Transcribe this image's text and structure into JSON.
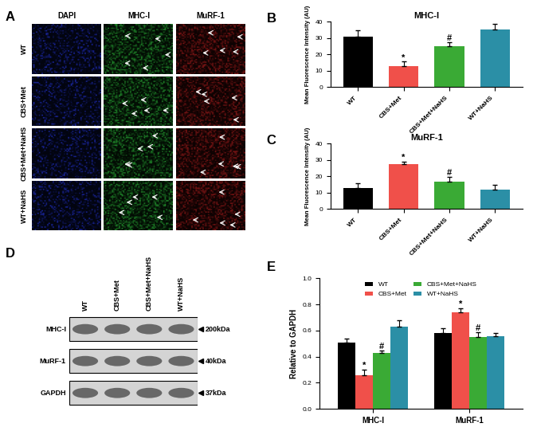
{
  "chart_data": [
    {
      "type": "bar",
      "panel": "B",
      "title": "MHC-I",
      "y_label": "Mean Fluorescence Intensity (AU)",
      "categories": [
        "WT",
        "CBS+Met",
        "CBS+Met+NaHS",
        "WT+NaHS"
      ],
      "values": [
        31,
        13,
        25,
        35.5
      ],
      "errors": [
        4,
        2.5,
        2.5,
        3
      ],
      "colors": [
        "#000000",
        "#f0504a",
        "#3aaa35",
        "#2b8fa6"
      ],
      "ylim": [
        0,
        40
      ],
      "yticks": [
        0,
        10,
        20,
        30,
        40
      ],
      "grid": false,
      "annotations": [
        {
          "category": "CBS+Met",
          "text": "*"
        },
        {
          "category": "CBS+Met+NaHS",
          "text": "#"
        }
      ]
    },
    {
      "type": "bar",
      "panel": "C",
      "title": "MuRF-1",
      "y_label": "Mean Fluorescence Intensity (AU)",
      "categories": [
        "WT",
        "CBS+Met",
        "CBS+Met+NaHS",
        "WT+NaHS"
      ],
      "values": [
        12.5,
        27.5,
        16.5,
        12
      ],
      "errors": [
        3,
        1.5,
        3,
        2.5
      ],
      "colors": [
        "#000000",
        "#f0504a",
        "#3aaa35",
        "#2b8fa6"
      ],
      "ylim": [
        0,
        40
      ],
      "yticks": [
        0,
        10,
        20,
        30,
        40
      ],
      "grid": false,
      "annotations": [
        {
          "category": "CBS+Met",
          "text": "*"
        },
        {
          "category": "CBS+Met+NaHS",
          "text": "#"
        }
      ]
    },
    {
      "type": "bar",
      "panel": "E",
      "y_label": "Relative to GAPDH",
      "categories": [
        "MHC-I",
        "MuRF-1"
      ],
      "series": [
        {
          "name": "WT",
          "color": "#000000",
          "values": [
            0.51,
            0.58
          ],
          "errors": [
            0.03,
            0.04
          ]
        },
        {
          "name": "CBS+Met",
          "color": "#f0504a",
          "values": [
            0.26,
            0.74
          ],
          "errors": [
            0.04,
            0.03
          ]
        },
        {
          "name": "CBS+Met+NaHS",
          "color": "#3aaa35",
          "values": [
            0.43,
            0.55
          ],
          "errors": [
            0.02,
            0.04
          ]
        },
        {
          "name": "WT+NaHS",
          "color": "#2b8fa6",
          "values": [
            0.63,
            0.56
          ],
          "errors": [
            0.05,
            0.02
          ]
        }
      ],
      "ylim": [
        0.0,
        1.0
      ],
      "yticks": [
        0.0,
        0.2,
        0.4,
        0.6,
        0.8,
        1.0
      ],
      "grid": false,
      "legend": "upper center",
      "annotations": [
        {
          "category": "MHC-I",
          "series": "CBS+Met",
          "text": "*"
        },
        {
          "category": "MHC-I",
          "series": "CBS+Met+NaHS",
          "text": "#"
        },
        {
          "category": "MuRF-1",
          "series": "CBS+Met",
          "text": "*"
        },
        {
          "category": "MuRF-1",
          "series": "CBS+Met+NaHS",
          "text": "#"
        }
      ]
    }
  ],
  "micrographs": {
    "panel": "A",
    "columns": [
      "DAPI",
      "MHC-I",
      "MuRF-1"
    ],
    "rows": [
      "WT",
      "CBS+Met",
      "CBS+Met+NaHS",
      "WT+NaHS"
    ]
  },
  "western_blot": {
    "panel": "D",
    "lanes": [
      "WT",
      "CBS+Met",
      "CBS+Met+NaHS",
      "WT+NaHS"
    ],
    "bands": [
      {
        "name": "MHC-I",
        "size": "200kDa"
      },
      {
        "name": "MuRF-1",
        "size": "40kDa"
      },
      {
        "name": "GAPDH",
        "size": "37kDa"
      }
    ]
  }
}
